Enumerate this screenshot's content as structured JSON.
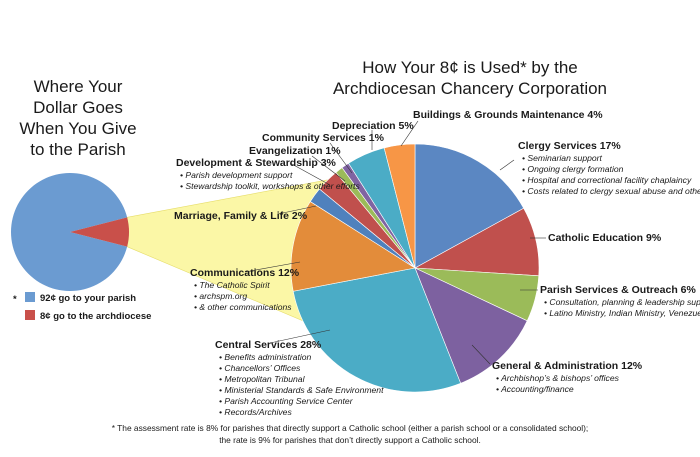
{
  "left_title": [
    "Where Your",
    "Dollar Goes",
    "When You Give",
    "to the Parish"
  ],
  "right_title": [
    "How Your 8¢ is Used* by the",
    "Archdiocesan Chancery Corporation"
  ],
  "footnote": [
    "* The assessment rate is 8% for parishes that directly support a Catholic school (either a parish school or a consolidated school);",
    "the rate is 9% for parishes that don’t directly support a Catholic school."
  ],
  "legend_marker": "*",
  "chart_data": [
    {
      "type": "pie",
      "title": "Where Your Dollar Goes When You Give to the Parish",
      "slices": [
        {
          "label": "92¢ go to your parish",
          "value": 92,
          "color": "#6b9bd1"
        },
        {
          "label": "8¢ go to the archdiocese",
          "value": 8,
          "color": "#c9504a"
        }
      ]
    },
    {
      "type": "pie",
      "title": "How Your 8¢ is Used* by the Archdiocesan Chancery Corporation",
      "slices": [
        {
          "label": "Clergy Services 17%",
          "value": 17,
          "color": "#5b87c2",
          "details": [
            "Seminarian support",
            "Ongoing clergy formation",
            "Hospital and correctional facility chaplaincy",
            "Costs related to clergy sexual abuse and other misconduct"
          ]
        },
        {
          "label": "Catholic Education 9%",
          "value": 9,
          "color": "#c0504d",
          "details": []
        },
        {
          "label": "Parish Services & Outreach 6%",
          "value": 6,
          "color": "#9bbb59",
          "details": [
            "Consultation, planning & leadership support to parishes",
            "Latino Ministry, Indian Ministry, Venezuelan Mission"
          ]
        },
        {
          "label": "General & Administration 12%",
          "value": 12,
          "color": "#7d61a0",
          "details": [
            "Archbishop’s & bishops’ offices",
            "Accounting/finance"
          ]
        },
        {
          "label": "Central Services 28%",
          "value": 28,
          "color": "#4bacc6",
          "details": [
            "Benefits administration",
            "Chancellors’ Offices",
            "Metropolitan Tribunal",
            "Ministerial Standards & Safe Environment",
            "Parish Accounting Service Center",
            "Records/Archives"
          ]
        },
        {
          "label": "Communications 12%",
          "value": 12,
          "color": "#e38c3a",
          "details": [
            "The Catholic Spirit",
            "archspm.org",
            "& other communications"
          ]
        },
        {
          "label": "Marriage, Family & Life 2%",
          "value": 2,
          "color": "#4f81bd",
          "details": []
        },
        {
          "label": "Development & Stewardship 3%",
          "value": 3,
          "color": "#c0504d",
          "details": [
            "Parish development support",
            "Stewardship toolkit, workshops & other efforts"
          ]
        },
        {
          "label": "Evangelization 1%",
          "value": 1,
          "color": "#9bbb59",
          "details": []
        },
        {
          "label": "Community Services 1%",
          "value": 1,
          "color": "#8064a2",
          "details": []
        },
        {
          "label": "Depreciation 5%",
          "value": 5,
          "color": "#4bacc6",
          "details": []
        },
        {
          "label": "Buildings & Grounds Maintenance 4%",
          "value": 4,
          "color": "#f79646",
          "details": []
        }
      ]
    }
  ]
}
